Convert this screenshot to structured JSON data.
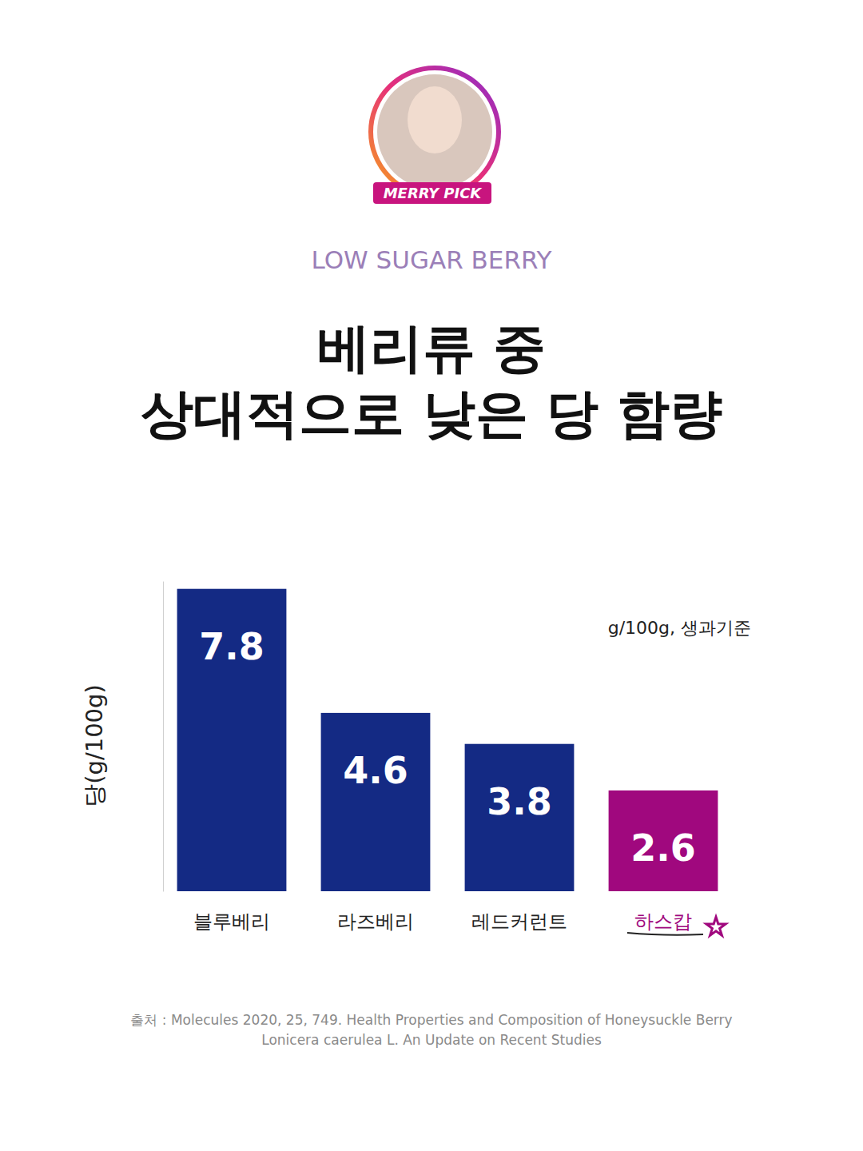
{
  "header": {
    "badge": "MERRY PICK",
    "eyebrow": "LOW SUGAR BERRY",
    "title_lines": [
      "베리류 중",
      "상대적으로 낮은 당 함량"
    ]
  },
  "chart_data": {
    "type": "bar",
    "categories": [
      "블루베리",
      "라즈베리",
      "레드커런트",
      "하스캅"
    ],
    "values": [
      7.8,
      4.6,
      3.8,
      2.6
    ],
    "colors": [
      "#142a84",
      "#142a84",
      "#142a84",
      "#a0087e"
    ],
    "ylabel": "당(g/100g)",
    "annotation": "g/100g, 생과기준",
    "ylim": [
      0,
      8
    ],
    "tick_labels": false,
    "grid": false,
    "data_labels": true
  },
  "footer": {
    "source_lines": [
      "출처 : Molecules 2020, 25, 749. Health Properties and Composition of Honeysuckle Berry",
      "Lonicera caerulea L. An Update on Recent Studies"
    ]
  }
}
